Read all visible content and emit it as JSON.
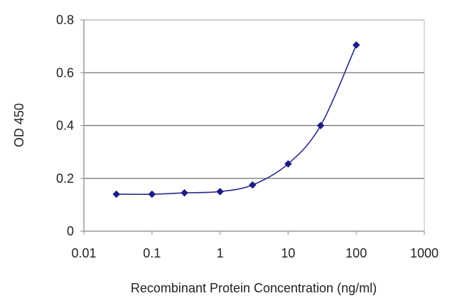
{
  "chart_data": {
    "type": "line",
    "xscale": "log",
    "xlabel": "Recombinant Protein Concentration (ng/ml)",
    "ylabel": "OD 450",
    "xlim": [
      0.01,
      1000
    ],
    "ylim": [
      0,
      0.8
    ],
    "xticks": [
      "0.01",
      "0.1",
      "1",
      "10",
      "100",
      "1000"
    ],
    "xtick_values": [
      0.01,
      0.1,
      1,
      10,
      100,
      1000
    ],
    "yticks": [
      "0",
      "0.2",
      "0.4",
      "0.6",
      "0.8"
    ],
    "ytick_values": [
      0,
      0.2,
      0.4,
      0.6,
      0.8
    ],
    "grid": "horizontal",
    "series": [
      {
        "x": [
          0.03,
          0.1,
          0.3,
          1,
          3,
          10,
          30,
          100
        ],
        "y": [
          0.14,
          0.14,
          0.145,
          0.15,
          0.175,
          0.255,
          0.4,
          0.705
        ],
        "color": "#2a2a8c",
        "marker": "diamond"
      }
    ]
  }
}
